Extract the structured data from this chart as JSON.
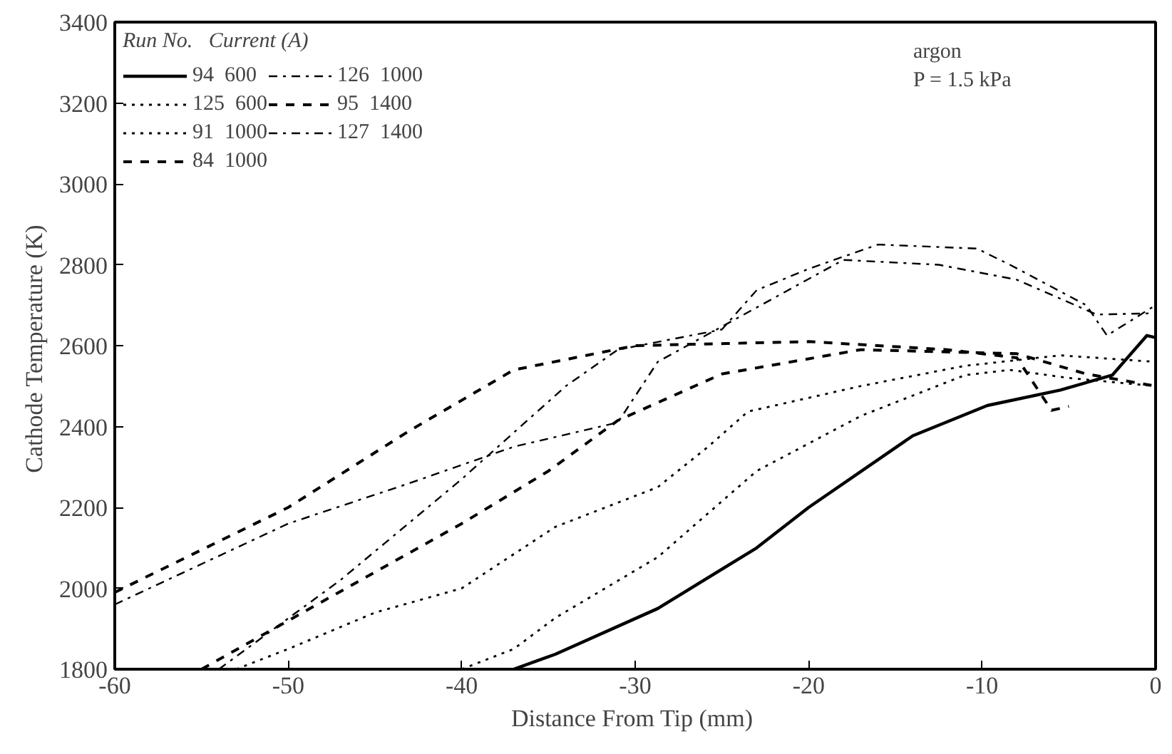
{
  "chart_data": {
    "type": "line",
    "xlabel": "Distance From Tip  (mm)",
    "ylabel": "Cathode Temperature  (K)",
    "legend_title": "Run No.   Current (A)",
    "annotations": [
      "argon",
      "P = 1.5 kPa"
    ],
    "xlim": [
      -60,
      0
    ],
    "xticks": [
      -60,
      -50,
      -40,
      -30,
      -20,
      -10,
      0
    ],
    "ylim": [
      1800,
      3400
    ],
    "yticks": [
      1800,
      2000,
      2200,
      2400,
      2600,
      2800,
      3000,
      3200,
      3400
    ],
    "grid": false,
    "legend": "top left",
    "marker": "none",
    "series": [
      {
        "name": "94  600",
        "color": "#000000",
        "line_style": "solid",
        "x": [
          -37,
          -34.6,
          -28.7,
          -23,
          -20,
          -14,
          -9.7,
          -5.5,
          -2.5,
          -0.5,
          0
        ],
        "values": [
          1800,
          1837,
          1950,
          2100,
          2200,
          2377,
          2452,
          2490,
          2527,
          2625,
          2620
        ]
      },
      {
        "name": "125  600",
        "color": "#000000",
        "line_style": "dotted",
        "x": [
          -40,
          -37,
          -34.6,
          -28.7,
          -23,
          -17,
          -11,
          -8.4,
          -5,
          0
        ],
        "values": [
          1800,
          1850,
          1927,
          2077,
          2290,
          2426,
          2527,
          2540,
          2520,
          2500
        ]
      },
      {
        "name": "91  1000",
        "color": "#000000",
        "line_style": "dotted",
        "x": [
          -53,
          -50,
          -45,
          -40,
          -34.6,
          -28.7,
          -25.8,
          -23.5,
          -17,
          -11,
          -5.5,
          0
        ],
        "values": [
          1800,
          1850,
          1940,
          2000,
          2152,
          2250,
          2350,
          2437,
          2500,
          2550,
          2576,
          2560
        ]
      },
      {
        "name": "84  1000",
        "color": "#000000",
        "line_style": "dashed",
        "x": [
          -60,
          -50,
          -43,
          -37,
          -30,
          -20,
          -12,
          -8,
          -6,
          -5
        ],
        "values": [
          1990,
          2200,
          2390,
          2540,
          2600,
          2610,
          2590,
          2570,
          2440,
          2450
        ]
      },
      {
        "name": "126  1000",
        "color": "#000000",
        "line_style": "dashdot",
        "x": [
          -54,
          -47,
          -40,
          -34,
          -31,
          -25,
          -23,
          -20,
          -16,
          -10.3,
          -8.4,
          -4,
          -2.8,
          0
        ],
        "values": [
          1800,
          2020,
          2270,
          2500,
          2590,
          2640,
          2737,
          2790,
          2850,
          2840,
          2800,
          2700,
          2625,
          2700
        ]
      },
      {
        "name": "95  1400",
        "color": "#000000",
        "line_style": "dashed",
        "x": [
          -55,
          -50,
          -45,
          -40,
          -35,
          -31,
          -25,
          -17,
          -8,
          -4,
          0
        ],
        "values": [
          1800,
          1920,
          2040,
          2160,
          2290,
          2415,
          2530,
          2590,
          2580,
          2530,
          2500
        ]
      },
      {
        "name": "127  1400",
        "color": "#000000",
        "line_style": "dashdot",
        "x": [
          -60,
          -50,
          -43,
          -37,
          -31,
          -28.7,
          -18,
          -12.5,
          -8,
          -3.4,
          0
        ],
        "values": [
          1960,
          2160,
          2260,
          2350,
          2410,
          2560,
          2812,
          2800,
          2763,
          2677,
          2680
        ]
      }
    ]
  }
}
